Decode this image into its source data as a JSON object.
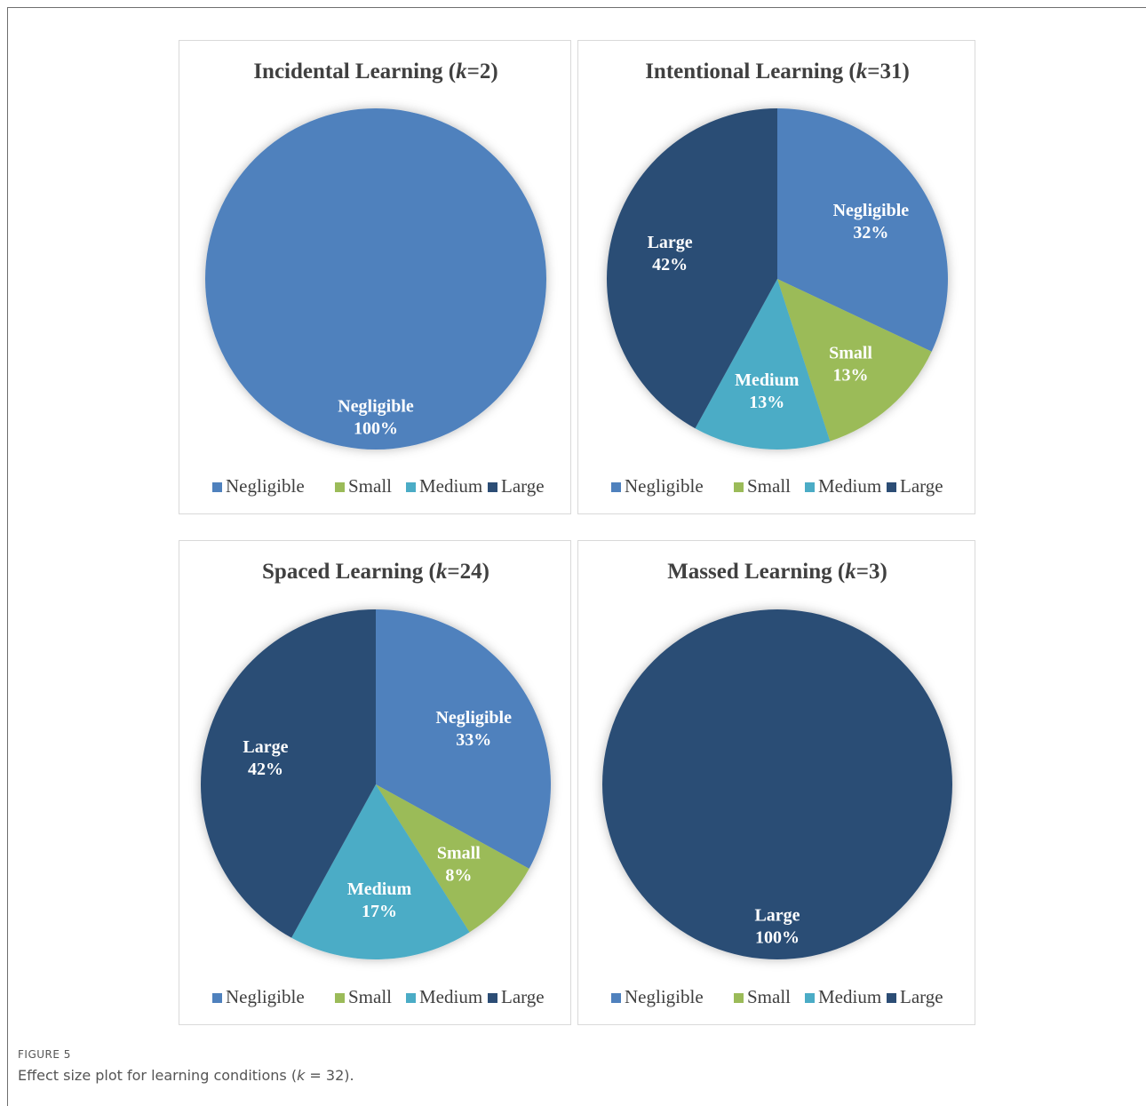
{
  "figure": {
    "label": "FIGURE 5",
    "caption_pre": "Effect size plot for learning conditions (",
    "caption_k": "k",
    "caption_post": " = 32)."
  },
  "colors": {
    "Negligible": "#4f81bd",
    "Small": "#9bbb59",
    "Medium": "#4bacc6",
    "Large": "#2c4d75"
  },
  "legend": [
    "Negligible",
    "Small",
    "Medium",
    "Large"
  ],
  "chart_data": [
    {
      "type": "pie",
      "title_pre": "Incidental Learning (",
      "title_k": "k",
      "title_post": "=2)",
      "categories": [
        "Negligible",
        "Small",
        "Medium",
        "Large"
      ],
      "values": [
        100,
        0,
        0,
        0
      ],
      "labels": [
        "100%",
        "0%",
        "0%",
        "0%"
      ],
      "legend": "bottom"
    },
    {
      "type": "pie",
      "title_pre": "Intentional Learning (",
      "title_k": "k",
      "title_post": "=31)",
      "categories": [
        "Negligible",
        "Small",
        "Medium",
        "Large"
      ],
      "values": [
        32,
        13,
        13,
        42
      ],
      "labels": [
        "32%",
        "13%",
        "13%",
        "42%"
      ],
      "legend": "bottom"
    },
    {
      "type": "pie",
      "title_pre": "Spaced Learning (",
      "title_k": "k",
      "title_post": "=24)",
      "categories": [
        "Negligible",
        "Small",
        "Medium",
        "Large"
      ],
      "values": [
        33,
        8,
        17,
        42
      ],
      "labels": [
        "33%",
        "8%",
        "17%",
        "42%"
      ],
      "legend": "bottom"
    },
    {
      "type": "pie",
      "title_pre": "Massed Learning (",
      "title_k": "k",
      "title_post": "=3)",
      "categories": [
        "Negligible",
        "Small",
        "Medium",
        "Large"
      ],
      "values": [
        0,
        0,
        0,
        100
      ],
      "labels": [
        "0%",
        "0%",
        "0%",
        "100%"
      ],
      "legend": "bottom"
    }
  ]
}
